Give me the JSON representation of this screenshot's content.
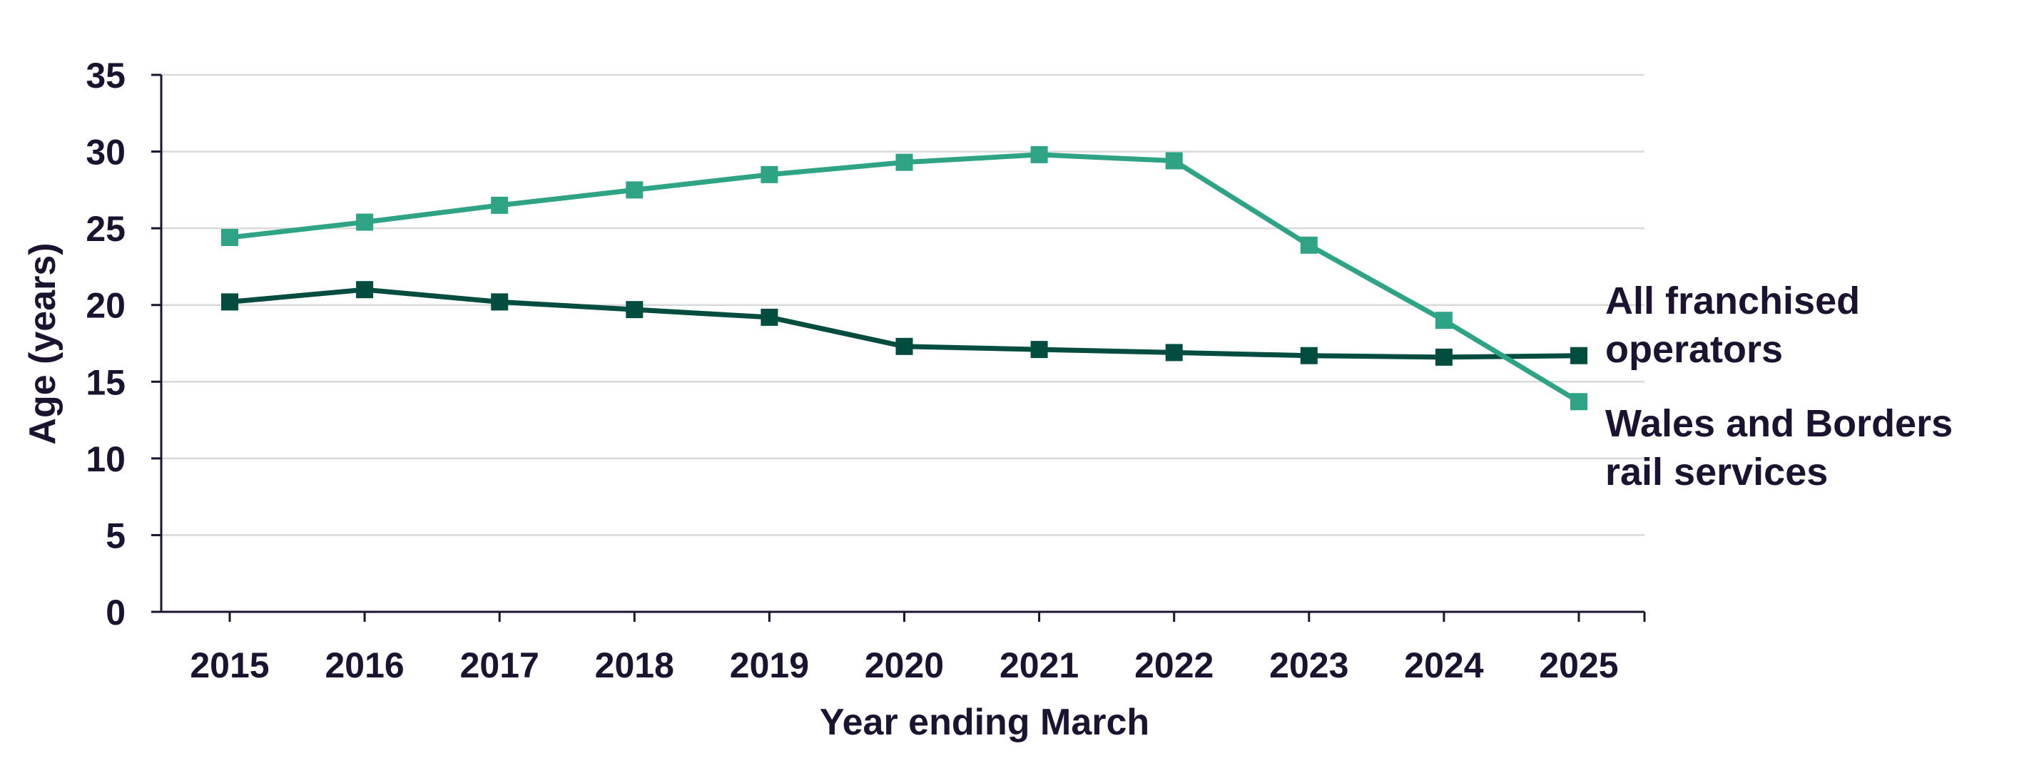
{
  "chart_data": {
    "type": "line",
    "title": "",
    "xlabel": "Year ending March",
    "ylabel": "Age (years)",
    "ylim": [
      0,
      35
    ],
    "yticks": [
      0,
      5,
      10,
      15,
      20,
      25,
      30,
      35
    ],
    "grid": true,
    "legend": "direct labels at right end of lines",
    "categories": [
      "2015",
      "2016",
      "2017",
      "2018",
      "2019",
      "2020",
      "2021",
      "2022",
      "2023",
      "2024",
      "2025"
    ],
    "series": [
      {
        "name": "All franchised operators",
        "label_lines": [
          "All franchised",
          "operators"
        ],
        "color": "#024d40",
        "values": [
          20.2,
          21.0,
          20.2,
          19.7,
          19.2,
          17.3,
          17.1,
          16.9,
          16.7,
          16.6,
          16.7
        ]
      },
      {
        "name": "Wales and Borders rail services",
        "label_lines": [
          "Wales and Borders",
          "rail services"
        ],
        "color": "#2ea386",
        "values": [
          24.4,
          25.4,
          26.5,
          27.5,
          28.5,
          29.3,
          29.8,
          29.4,
          23.9,
          19.0,
          13.7
        ]
      }
    ]
  }
}
